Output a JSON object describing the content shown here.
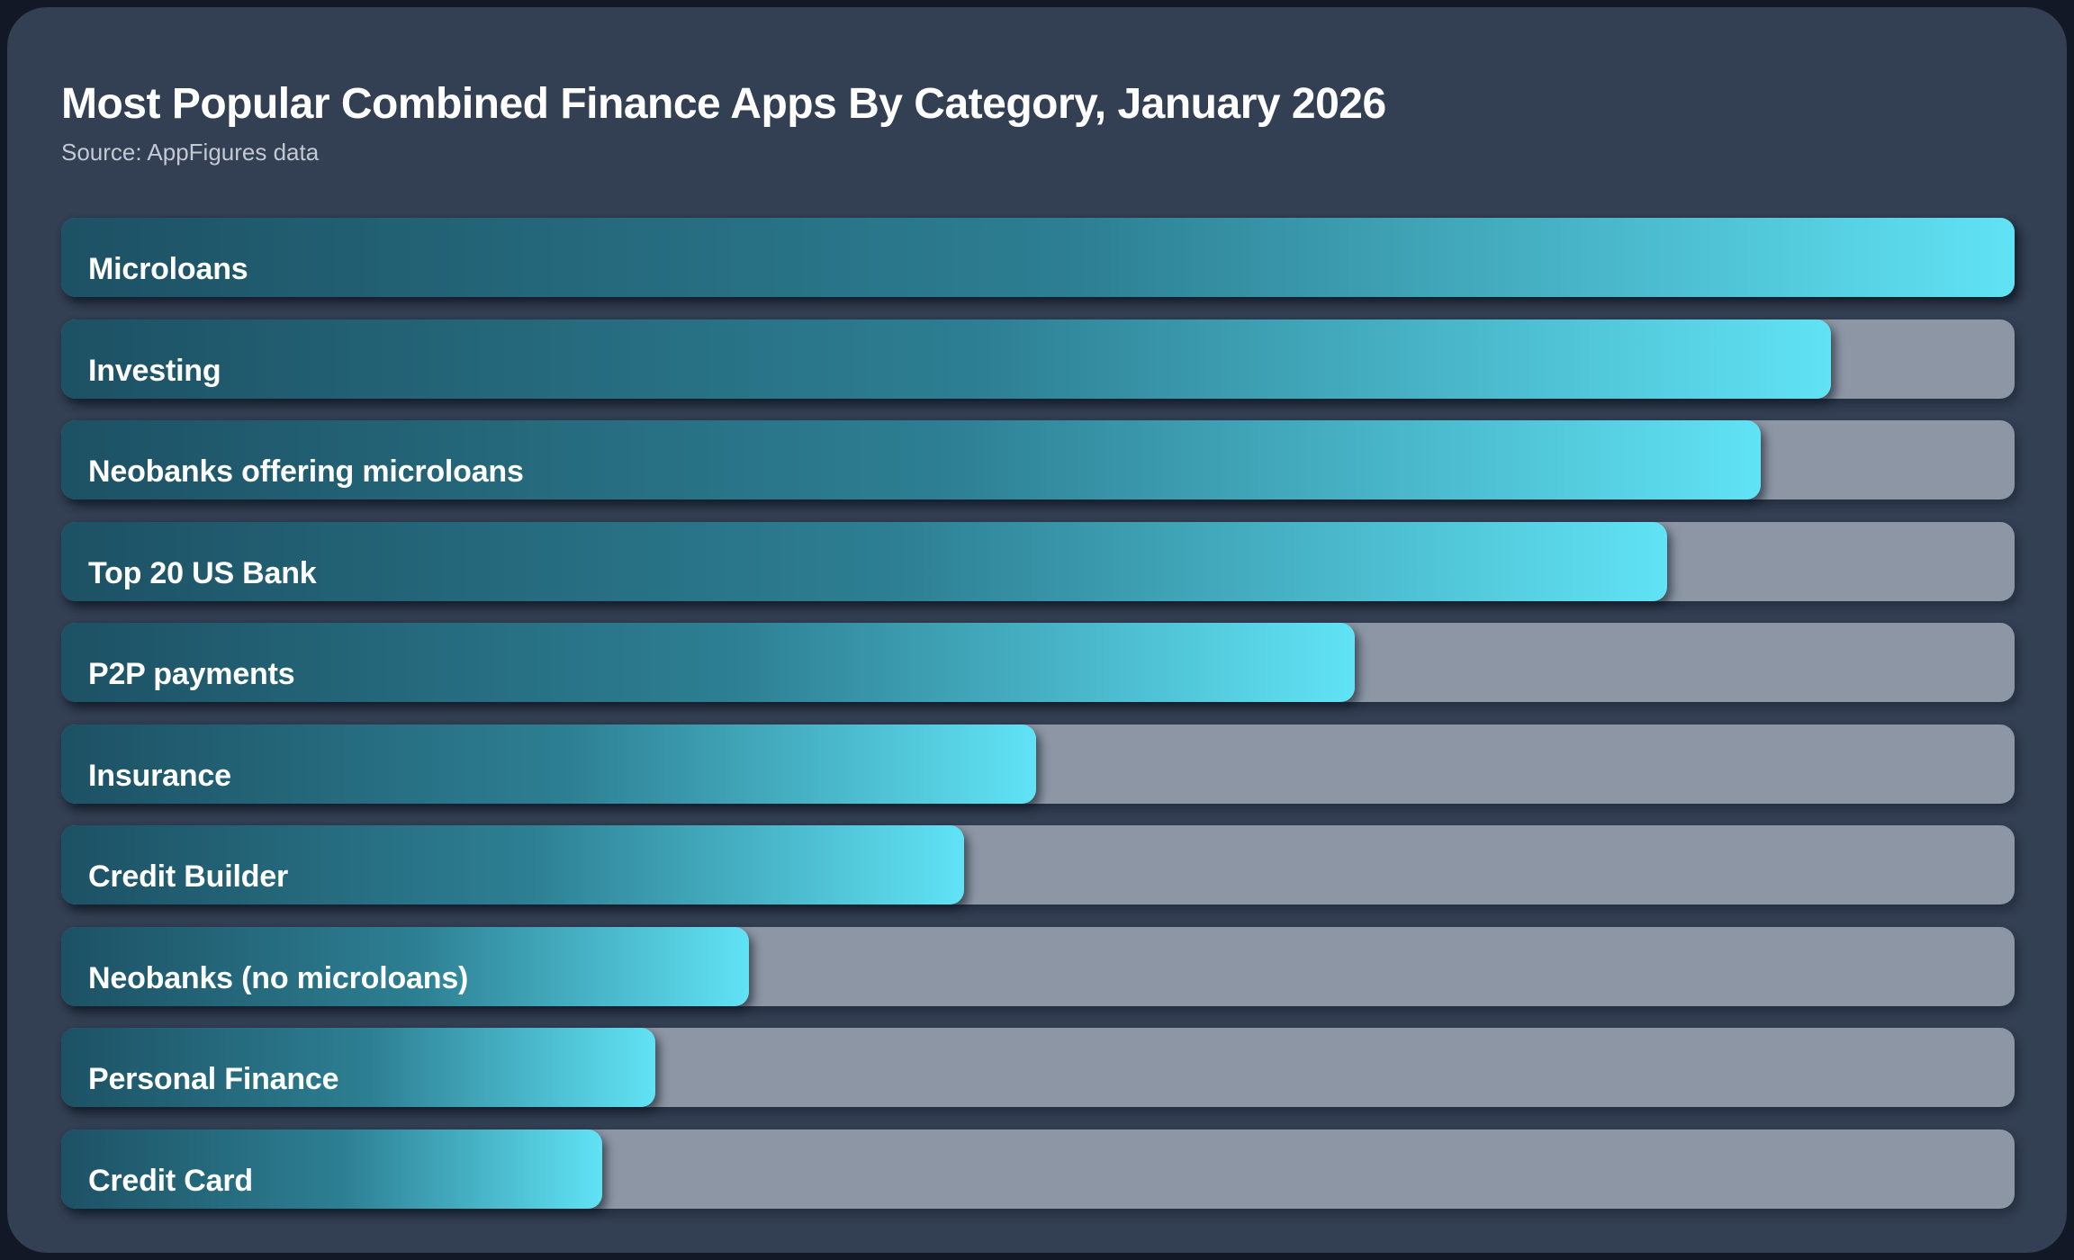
{
  "header": {
    "title": "Most Popular Combined Finance Apps By Category, January 2026",
    "source": "Source: AppFigures data"
  },
  "colors": {
    "page_background": "#121826",
    "panel_background": "#333f52",
    "track": "#8c96a5",
    "bar_gradient_start": "#1d5164",
    "bar_gradient_mid": "#2d7f93",
    "bar_gradient_end": "#60e3f5",
    "title_text": "#ffffff",
    "source_text": "#c2c9d3",
    "label_text": "#ffffff"
  },
  "chart_data": {
    "type": "bar",
    "orientation": "horizontal",
    "title": "Most Popular Combined Finance Apps By Category, January 2026",
    "subtitle": "Source: AppFigures data",
    "categories": [
      "Microloans",
      "Investing",
      "Neobanks offering microloans",
      "Top 20 US Bank",
      "P2P payments",
      "Insurance",
      "Credit Builder",
      "Neobanks (no microloans)",
      "Personal Finance",
      "Credit Card"
    ],
    "values_percent_of_max": [
      100,
      90.6,
      87.0,
      82.2,
      66.2,
      49.9,
      46.2,
      35.2,
      30.4,
      27.7
    ],
    "value_axis_shown": false,
    "data_labels_shown": false,
    "gridlines": false,
    "legend_position": "none",
    "bars_sorted": "descending",
    "full_length_track_behind_bars": true
  }
}
